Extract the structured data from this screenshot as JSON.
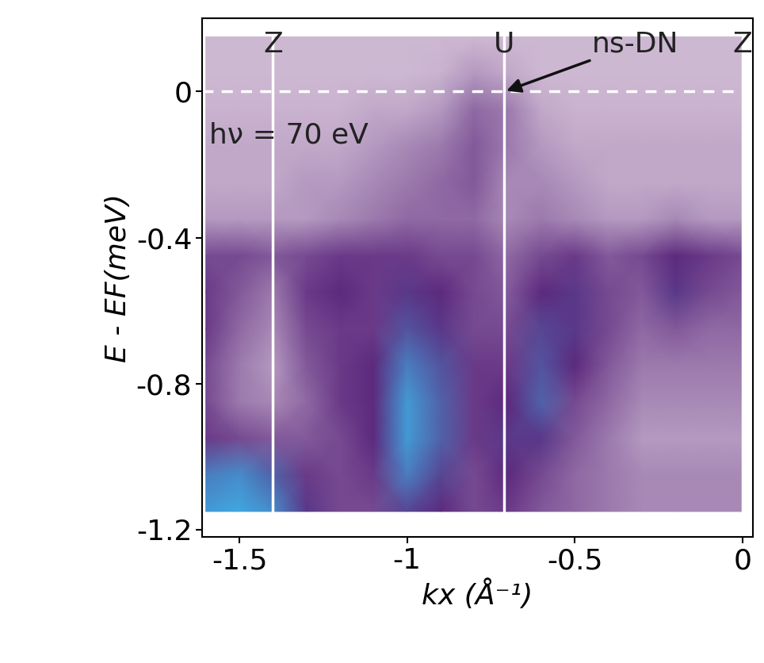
{
  "chart_data": {
    "type": "heatmap",
    "xlabel": "kx (Å⁻¹)",
    "ylabel": "E - EF(meV)",
    "xlim": [
      -1.61,
      0.03
    ],
    "ylim": [
      -1.22,
      0.2
    ],
    "xticks": [
      -1.5,
      -1,
      -0.5,
      0
    ],
    "yticks": [
      0,
      -0.4,
      -0.8,
      -1.2
    ],
    "x": [
      -1.6,
      -1.5,
      -1.4,
      -1.3,
      -1.2,
      -1.1,
      -1.0,
      -0.9,
      -0.8,
      -0.7,
      -0.6,
      -0.5,
      -0.4,
      -0.3,
      -0.2,
      -0.1,
      0.0
    ],
    "y": [
      0.15,
      0.05,
      -0.05,
      -0.15,
      -0.25,
      -0.35,
      -0.45,
      -0.55,
      -0.65,
      -0.75,
      -0.85,
      -0.95,
      -1.05,
      -1.15
    ],
    "cells": [
      [
        0.1,
        0.1,
        0.1,
        0.1,
        0.1,
        0.1,
        0.1,
        0.1,
        0.1,
        0.1,
        0.1,
        0.1,
        0.1,
        0.1,
        0.1,
        0.1,
        0.1
      ],
      [
        0.1,
        0.1,
        0.1,
        0.1,
        0.1,
        0.1,
        0.1,
        0.12,
        0.2,
        0.15,
        0.1,
        0.1,
        0.1,
        0.1,
        0.1,
        0.1,
        0.1
      ],
      [
        0.12,
        0.12,
        0.12,
        0.12,
        0.12,
        0.15,
        0.15,
        0.2,
        0.35,
        0.3,
        0.15,
        0.12,
        0.12,
        0.12,
        0.12,
        0.12,
        0.12
      ],
      [
        0.15,
        0.15,
        0.15,
        0.15,
        0.15,
        0.2,
        0.25,
        0.3,
        0.4,
        0.3,
        0.2,
        0.15,
        0.15,
        0.15,
        0.15,
        0.15,
        0.15
      ],
      [
        0.15,
        0.15,
        0.15,
        0.2,
        0.2,
        0.25,
        0.3,
        0.35,
        0.4,
        0.25,
        0.25,
        0.2,
        0.15,
        0.15,
        0.15,
        0.15,
        0.15
      ],
      [
        0.2,
        0.2,
        0.2,
        0.2,
        0.25,
        0.3,
        0.35,
        0.35,
        0.35,
        0.25,
        0.3,
        0.25,
        0.2,
        0.2,
        0.25,
        0.2,
        0.2
      ],
      [
        0.45,
        0.45,
        0.4,
        0.45,
        0.5,
        0.5,
        0.5,
        0.45,
        0.45,
        0.35,
        0.45,
        0.5,
        0.4,
        0.45,
        0.55,
        0.5,
        0.45
      ],
      [
        0.5,
        0.4,
        0.3,
        0.5,
        0.55,
        0.5,
        0.6,
        0.55,
        0.45,
        0.4,
        0.55,
        0.6,
        0.45,
        0.4,
        0.6,
        0.45,
        0.4
      ],
      [
        0.5,
        0.35,
        0.25,
        0.45,
        0.5,
        0.5,
        0.7,
        0.6,
        0.45,
        0.45,
        0.65,
        0.6,
        0.45,
        0.35,
        0.4,
        0.35,
        0.35
      ],
      [
        0.45,
        0.3,
        0.2,
        0.4,
        0.5,
        0.55,
        0.85,
        0.7,
        0.5,
        0.5,
        0.7,
        0.55,
        0.4,
        0.3,
        0.3,
        0.3,
        0.3
      ],
      [
        0.45,
        0.3,
        0.25,
        0.35,
        0.5,
        0.55,
        0.95,
        0.75,
        0.5,
        0.55,
        0.75,
        0.45,
        0.35,
        0.25,
        0.25,
        0.25,
        0.25
      ],
      [
        0.5,
        0.45,
        0.4,
        0.4,
        0.45,
        0.55,
        0.95,
        0.75,
        0.5,
        0.6,
        0.6,
        0.4,
        0.3,
        0.2,
        0.2,
        0.2,
        0.2
      ],
      [
        0.85,
        0.9,
        0.75,
        0.5,
        0.45,
        0.5,
        0.85,
        0.65,
        0.45,
        0.55,
        0.45,
        0.35,
        0.3,
        0.25,
        0.25,
        0.25,
        0.25
      ],
      [
        0.95,
        1.0,
        0.9,
        0.6,
        0.45,
        0.45,
        0.65,
        0.55,
        0.45,
        0.5,
        0.4,
        0.35,
        0.3,
        0.25,
        0.25,
        0.25,
        0.25
      ]
    ],
    "vlines": [
      -1.4,
      -0.71,
      0.0
    ],
    "hlines": [
      0
    ],
    "point_labels": [
      {
        "text": "Z",
        "x": -1.4,
        "y": 0.13
      },
      {
        "text": "U",
        "x": -0.71,
        "y": 0.13
      },
      {
        "text": "Z",
        "x": 0.0,
        "y": 0.13
      }
    ],
    "annotations": [
      {
        "text": "ns-DN",
        "x": -0.71,
        "y": 0.0,
        "text_x": -0.45,
        "text_y": 0.13
      },
      {
        "text": "hν = 70 eV",
        "x": -1.59,
        "y": -0.12
      }
    ]
  }
}
